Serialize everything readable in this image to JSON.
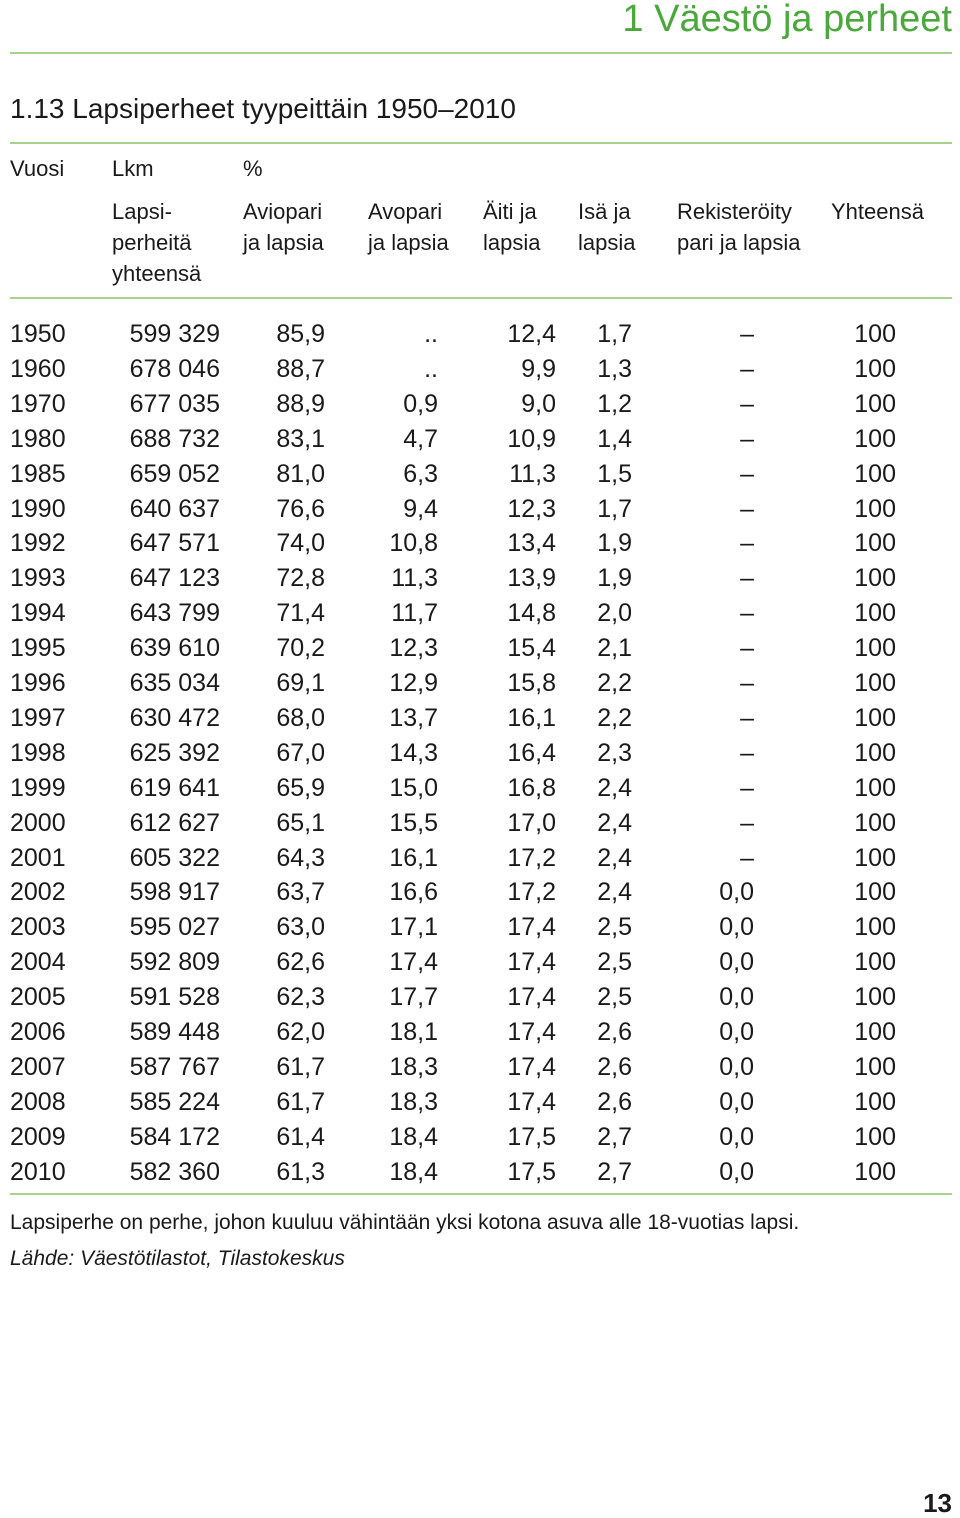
{
  "header": {
    "chapter": "1   Väestö ja perheet",
    "title": "1.13   Lapsiperheet tyypeittäin 1950–2010"
  },
  "table": {
    "group_headers": [
      "Vuosi",
      "Lkm",
      "%"
    ],
    "column_headers": [
      [
        "Lapsi-",
        "perheitä",
        "yhteensä"
      ],
      [
        "Aviopari",
        "ja lapsia"
      ],
      [
        "Avopari",
        "ja lapsia"
      ],
      [
        "Äiti ja",
        "lapsia"
      ],
      [
        "Isä ja",
        "lapsia"
      ],
      [
        "Rekisteröity",
        "pari ja lapsia"
      ],
      [
        "Yhteensä"
      ]
    ],
    "rows": [
      [
        "1950",
        "599 329",
        "85,9",
        "..",
        "12,4",
        "1,7",
        "–",
        "100"
      ],
      [
        "1960",
        "678 046",
        "88,7",
        "..",
        "9,9",
        "1,3",
        "–",
        "100"
      ],
      [
        "1970",
        "677 035",
        "88,9",
        "0,9",
        "9,0",
        "1,2",
        "–",
        "100"
      ],
      [
        "1980",
        "688 732",
        "83,1",
        "4,7",
        "10,9",
        "1,4",
        "–",
        "100"
      ],
      [
        "1985",
        "659 052",
        "81,0",
        "6,3",
        "11,3",
        "1,5",
        "–",
        "100"
      ],
      [
        "1990",
        "640 637",
        "76,6",
        "9,4",
        "12,3",
        "1,7",
        "–",
        "100"
      ],
      [
        "1992",
        "647 571",
        "74,0",
        "10,8",
        "13,4",
        "1,9",
        "–",
        "100"
      ],
      [
        "1993",
        "647 123",
        "72,8",
        "11,3",
        "13,9",
        "1,9",
        "–",
        "100"
      ],
      [
        "1994",
        "643 799",
        "71,4",
        "11,7",
        "14,8",
        "2,0",
        "–",
        "100"
      ],
      [
        "1995",
        "639 610",
        "70,2",
        "12,3",
        "15,4",
        "2,1",
        "–",
        "100"
      ],
      [
        "1996",
        "635 034",
        "69,1",
        "12,9",
        "15,8",
        "2,2",
        "–",
        "100"
      ],
      [
        "1997",
        "630 472",
        "68,0",
        "13,7",
        "16,1",
        "2,2",
        "–",
        "100"
      ],
      [
        "1998",
        "625 392",
        "67,0",
        "14,3",
        "16,4",
        "2,3",
        "–",
        "100"
      ],
      [
        "1999",
        "619 641",
        "65,9",
        "15,0",
        "16,8",
        "2,4",
        "–",
        "100"
      ],
      [
        "2000",
        "612 627",
        "65,1",
        "15,5",
        "17,0",
        "2,4",
        "–",
        "100"
      ],
      [
        "2001",
        "605 322",
        "64,3",
        "16,1",
        "17,2",
        "2,4",
        "–",
        "100"
      ],
      [
        "2002",
        "598 917",
        "63,7",
        "16,6",
        "17,2",
        "2,4",
        "0,0",
        "100"
      ],
      [
        "2003",
        "595 027",
        "63,0",
        "17,1",
        "17,4",
        "2,5",
        "0,0",
        "100"
      ],
      [
        "2004",
        "592 809",
        "62,6",
        "17,4",
        "17,4",
        "2,5",
        "0,0",
        "100"
      ],
      [
        "2005",
        "591 528",
        "62,3",
        "17,7",
        "17,4",
        "2,5",
        "0,0",
        "100"
      ],
      [
        "2006",
        "589 448",
        "62,0",
        "18,1",
        "17,4",
        "2,6",
        "0,0",
        "100"
      ],
      [
        "2007",
        "587 767",
        "61,7",
        "18,3",
        "17,4",
        "2,6",
        "0,0",
        "100"
      ],
      [
        "2008",
        "585 224",
        "61,7",
        "18,3",
        "17,4",
        "2,6",
        "0,0",
        "100"
      ],
      [
        "2009",
        "584 172",
        "61,4",
        "18,4",
        "17,5",
        "2,7",
        "0,0",
        "100"
      ],
      [
        "2010",
        "582 360",
        "61,3",
        "18,4",
        "17,5",
        "2,7",
        "0,0",
        "100"
      ]
    ]
  },
  "footer": {
    "note": "Lapsiperhe on perhe, johon kuuluu vähintään yksi kotona asuva alle 18-vuotias lapsi.",
    "source": "Lähde: Väestötilastot, Tilastokeskus",
    "page_number": "13"
  }
}
